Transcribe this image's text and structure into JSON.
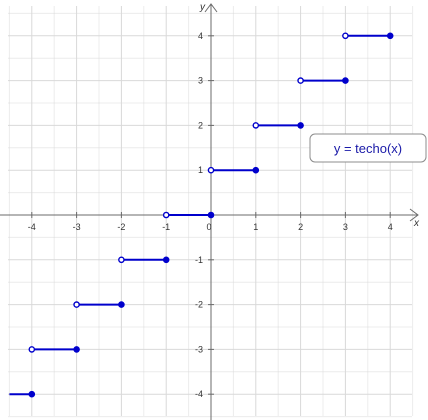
{
  "chart_data": {
    "type": "line",
    "title": "",
    "xlabel": "x",
    "ylabel": "y",
    "xlim": [
      -4.5,
      4.5
    ],
    "ylim": [
      -4.5,
      4.5
    ],
    "grid": true,
    "x_tick_labels": [
      "-4",
      "-3",
      "-2",
      "-1",
      "0",
      "1",
      "2",
      "3",
      "4"
    ],
    "y_tick_labels": [
      "4",
      "3",
      "2",
      "1",
      "0",
      "-1",
      "-2",
      "-3",
      "-4"
    ],
    "x_ticks": [
      -4,
      -3,
      -2,
      -1,
      0,
      1,
      2,
      3,
      4
    ],
    "y_ticks": [
      4,
      3,
      2,
      1,
      0,
      -1,
      -2,
      -3,
      -4
    ],
    "legend": {
      "text": "y = techo(x)",
      "placement": "right"
    },
    "series": [
      {
        "name": "y = techo(x)",
        "color": "#0000cc",
        "segments": [
          {
            "x_start": -4.5,
            "x_end": -4,
            "y": -4,
            "start_open": false,
            "end_open": false,
            "show_start_point": false,
            "show_end_point": true
          },
          {
            "x_start": -4,
            "x_end": -3,
            "y": -3,
            "start_open": true,
            "end_open": false,
            "show_start_point": true,
            "show_end_point": true
          },
          {
            "x_start": -3,
            "x_end": -2,
            "y": -2,
            "start_open": true,
            "end_open": false,
            "show_start_point": true,
            "show_end_point": true
          },
          {
            "x_start": -2,
            "x_end": -1,
            "y": -1,
            "start_open": true,
            "end_open": false,
            "show_start_point": true,
            "show_end_point": true
          },
          {
            "x_start": -1,
            "x_end": 0,
            "y": 0,
            "start_open": true,
            "end_open": false,
            "show_start_point": true,
            "show_end_point": true
          },
          {
            "x_start": 0,
            "x_end": 1,
            "y": 1,
            "start_open": true,
            "end_open": false,
            "show_start_point": true,
            "show_end_point": true
          },
          {
            "x_start": 1,
            "x_end": 2,
            "y": 2,
            "start_open": true,
            "end_open": false,
            "show_start_point": true,
            "show_end_point": true
          },
          {
            "x_start": 2,
            "x_end": 3,
            "y": 3,
            "start_open": true,
            "end_open": false,
            "show_start_point": true,
            "show_end_point": true
          },
          {
            "x_start": 3,
            "x_end": 4,
            "y": 4,
            "start_open": true,
            "end_open": false,
            "show_start_point": true,
            "show_end_point": true
          }
        ]
      }
    ]
  },
  "colors": {
    "axis": "#6b6b6b",
    "grid": "#d9d9d9",
    "series": "#0000cc",
    "legend_border": "#8c8c8c"
  }
}
